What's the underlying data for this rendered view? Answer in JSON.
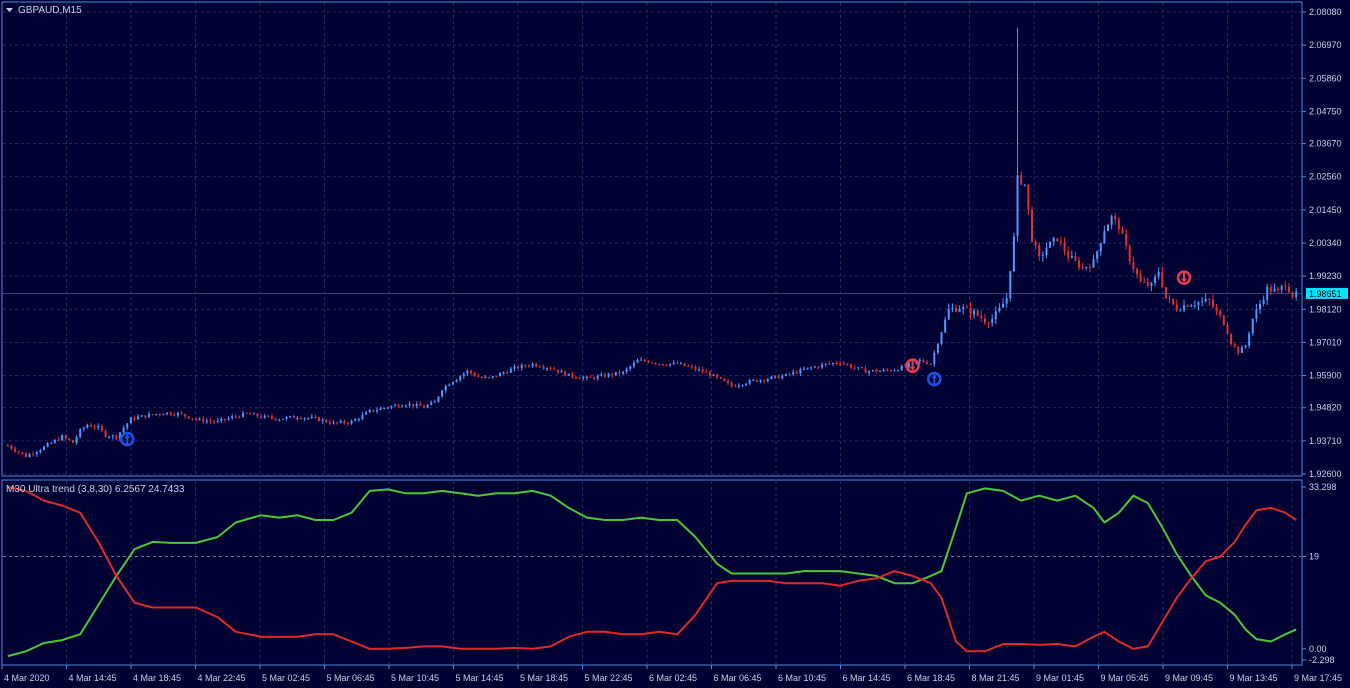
{
  "window": {
    "symbol_label": "GBPAUD,M15"
  },
  "colors": {
    "background": "#000032",
    "frame": "#4A8CE0",
    "grid": "#1E3C7A",
    "text": "#C8D2E6",
    "bull": "#4D9BFF",
    "bear": "#E03030",
    "green_line": "#4CC832",
    "red_line": "#E02A2A",
    "price_tag_bg": "#00E5FF",
    "arrow_up": "#1E50E6",
    "arrow_down": "#E63C50"
  },
  "price_axis": {
    "ticks": [
      "2.08080",
      "2.06970",
      "2.05860",
      "2.04750",
      "2.03670",
      "2.02560",
      "2.01450",
      "2.00340",
      "1.99230",
      "1.98120",
      "1.97010",
      "1.95900",
      "1.94820",
      "1.93710",
      "1.92600"
    ],
    "current_price": "1.98651"
  },
  "indicator": {
    "title": "M30 Ultra trend (3,8,30) 6.2567 24.7433",
    "ticks": [
      "33.298",
      "19",
      "0.00",
      "-2.298"
    ],
    "level": "19"
  },
  "time_axis": {
    "labels": [
      "4 Mar 2020",
      "4 Mar 14:45",
      "4 Mar 18:45",
      "4 Mar 22:45",
      "5 Mar 02:45",
      "5 Mar 06:45",
      "5 Mar 10:45",
      "5 Mar 14:45",
      "5 Mar 18:45",
      "5 Mar 22:45",
      "6 Mar 02:45",
      "6 Mar 06:45",
      "6 Mar 10:45",
      "6 Mar 14:45",
      "6 Mar 18:45",
      "8 Mar 21:45",
      "9 Mar 01:45",
      "9 Mar 05:45",
      "9 Mar 09:45",
      "9 Mar 13:45",
      "9 Mar 17:45"
    ]
  },
  "chart_data": [
    {
      "type": "candlestick",
      "title": "GBPAUD,M15",
      "ylim": [
        1.926,
        2.0808
      ],
      "y_ticks": [
        2.0808,
        2.0697,
        2.0586,
        2.0475,
        2.0367,
        2.0256,
        2.0145,
        2.0034,
        1.9923,
        1.9812,
        1.9701,
        1.959,
        1.9482,
        1.9371,
        1.926
      ],
      "close_path": [
        [
          0,
          1.9355
        ],
        [
          5,
          1.932
        ],
        [
          10,
          1.935
        ],
        [
          15,
          1.9385
        ],
        [
          18,
          1.9365
        ],
        [
          20,
          1.9405
        ],
        [
          22,
          1.9425
        ],
        [
          25,
          1.9415
        ],
        [
          27,
          1.939
        ],
        [
          30,
          1.9385
        ],
        [
          34,
          1.9445
        ],
        [
          38,
          1.9455
        ],
        [
          43,
          1.9465
        ],
        [
          47,
          1.9462
        ],
        [
          53,
          1.944
        ],
        [
          58,
          1.9435
        ],
        [
          62,
          1.945
        ],
        [
          66,
          1.9462
        ],
        [
          70,
          1.9452
        ],
        [
          75,
          1.9445
        ],
        [
          80,
          1.9452
        ],
        [
          85,
          1.9445
        ],
        [
          90,
          1.943
        ],
        [
          95,
          1.9435
        ],
        [
          100,
          1.947
        ],
        [
          105,
          1.9485
        ],
        [
          110,
          1.9495
        ],
        [
          115,
          1.9485
        ],
        [
          118,
          1.95
        ],
        [
          120,
          1.9545
        ],
        [
          122,
          1.9565
        ],
        [
          124,
          1.958
        ],
        [
          127,
          1.9605
        ],
        [
          130,
          1.9585
        ],
        [
          133,
          1.958
        ],
        [
          137,
          1.96
        ],
        [
          140,
          1.9615
        ],
        [
          145,
          1.9628
        ],
        [
          150,
          1.9615
        ],
        [
          155,
          1.959
        ],
        [
          160,
          1.958
        ],
        [
          165,
          1.959
        ],
        [
          170,
          1.96
        ],
        [
          174,
          1.964
        ],
        [
          177,
          1.9638
        ],
        [
          181,
          1.9628
        ],
        [
          185,
          1.963
        ],
        [
          189,
          1.9615
        ],
        [
          193,
          1.96
        ],
        [
          197,
          1.9575
        ],
        [
          200,
          1.9555
        ],
        [
          205,
          1.957
        ],
        [
          210,
          1.958
        ],
        [
          215,
          1.959
        ],
        [
          220,
          1.961
        ],
        [
          225,
          1.9625
        ],
        [
          230,
          1.9635
        ],
        [
          233,
          1.962
        ],
        [
          237,
          1.9605
        ],
        [
          241,
          1.9605
        ],
        [
          245,
          1.961
        ],
        [
          248,
          1.962
        ],
        [
          252,
          1.964
        ],
        [
          255,
          1.963
        ],
        [
          260,
          1.981
        ],
        [
          263,
          1.9818
        ],
        [
          267,
          1.98
        ],
        [
          270,
          1.9775
        ],
        [
          272,
          1.978
        ],
        [
          274,
          1.981
        ],
        [
          276,
          1.985
        ],
        [
          278,
          2.005
        ],
        [
          279,
          2.025
        ],
        [
          281,
          2.023
        ],
        [
          283,
          2.005
        ],
        [
          285,
          1.998
        ],
        [
          287,
          2.002
        ],
        [
          290,
          2.005
        ],
        [
          293,
          1.999
        ],
        [
          297,
          1.995
        ],
        [
          300,
          1.997
        ],
        [
          303,
          2.008
        ],
        [
          305,
          2.012
        ],
        [
          307,
          2.009
        ],
        [
          310,
          1.998
        ],
        [
          313,
          1.99
        ],
        [
          316,
          1.989
        ],
        [
          318,
          1.994
        ],
        [
          320,
          1.985
        ],
        [
          323,
          1.9815
        ],
        [
          326,
          1.983
        ],
        [
          329,
          1.9835
        ],
        [
          332,
          1.984
        ],
        [
          334,
          1.98
        ],
        [
          336,
          1.977
        ],
        [
          338,
          1.97
        ],
        [
          340,
          1.967
        ],
        [
          342,
          1.969
        ],
        [
          344,
          1.978
        ],
        [
          346,
          1.983
        ],
        [
          348,
          1.988
        ],
        [
          351,
          1.987
        ],
        [
          353,
          1.99
        ],
        [
          355,
          1.986
        ]
      ],
      "current_price": 1.98651,
      "signals": [
        {
          "index": 33,
          "direction": "up",
          "price": 1.9377
        },
        {
          "index": 250,
          "direction": "down",
          "price": 1.9623
        },
        {
          "index": 256,
          "direction": "up",
          "price": 1.9578
        },
        {
          "index": 325,
          "direction": "down",
          "price": 1.9918
        }
      ]
    },
    {
      "type": "line",
      "title": "M30 Ultra trend (3,8,30) 6.2567 24.7433",
      "ylim": [
        -2.298,
        33.298
      ],
      "y_ticks": [
        33.298,
        19,
        0.0,
        -2.298
      ],
      "levels": [
        19
      ],
      "series": [
        {
          "color": "#4CC832",
          "points": [
            [
              0,
              -1.5
            ],
            [
              5,
              -0.5
            ],
            [
              10,
              1.2
            ],
            [
              15,
              1.8
            ],
            [
              20,
              3.0
            ],
            [
              25,
              9.0
            ],
            [
              30,
              15.0
            ],
            [
              35,
              20.5
            ],
            [
              40,
              22.0
            ],
            [
              45,
              21.8
            ],
            [
              52,
              21.8
            ],
            [
              58,
              23.0
            ],
            [
              63,
              26.0
            ],
            [
              70,
              27.5
            ],
            [
              75,
              27.0
            ],
            [
              80,
              27.5
            ],
            [
              85,
              26.5
            ],
            [
              90,
              26.5
            ],
            [
              95,
              28.0
            ],
            [
              100,
              32.5
            ],
            [
              105,
              32.8
            ],
            [
              110,
              32.0
            ],
            [
              115,
              32.0
            ],
            [
              120,
              32.5
            ],
            [
              125,
              32.0
            ],
            [
              130,
              31.5
            ],
            [
              135,
              32.0
            ],
            [
              140,
              32.0
            ],
            [
              145,
              32.5
            ],
            [
              150,
              31.5
            ],
            [
              155,
              29.0
            ],
            [
              160,
              27.0
            ],
            [
              165,
              26.5
            ],
            [
              170,
              26.5
            ],
            [
              175,
              27.0
            ],
            [
              180,
              26.5
            ],
            [
              185,
              26.5
            ],
            [
              190,
              23.0
            ],
            [
              196,
              17.5
            ],
            [
              200,
              15.5
            ],
            [
              205,
              15.5
            ],
            [
              210,
              15.5
            ],
            [
              215,
              15.5
            ],
            [
              220,
              16.0
            ],
            [
              225,
              16.0
            ],
            [
              230,
              16.0
            ],
            [
              235,
              15.5
            ],
            [
              240,
              15.0
            ],
            [
              245,
              13.5
            ],
            [
              250,
              13.5
            ],
            [
              255,
              15.0
            ],
            [
              258,
              16.0
            ],
            [
              262,
              25.0
            ],
            [
              265,
              32.0
            ],
            [
              270,
              33.0
            ],
            [
              275,
              32.5
            ],
            [
              280,
              30.5
            ],
            [
              285,
              31.5
            ],
            [
              290,
              30.5
            ],
            [
              295,
              31.5
            ],
            [
              300,
              29.0
            ],
            [
              303,
              26.0
            ],
            [
              307,
              28.0
            ],
            [
              311,
              31.5
            ],
            [
              315,
              30.0
            ],
            [
              319,
              25.0
            ],
            [
              323,
              19.5
            ],
            [
              327,
              15.0
            ],
            [
              331,
              11.0
            ],
            [
              335,
              9.5
            ],
            [
              339,
              7.0
            ],
            [
              342,
              4.0
            ],
            [
              345,
              2.0
            ],
            [
              349,
              1.5
            ],
            [
              353,
              3.0
            ],
            [
              356,
              4.0
            ]
          ]
        },
        {
          "color": "#E02A2A",
          "points": [
            [
              0,
              33.3
            ],
            [
              5,
              32.5
            ],
            [
              10,
              30.5
            ],
            [
              15,
              29.5
            ],
            [
              20,
              28.0
            ],
            [
              25,
              22.0
            ],
            [
              30,
              15.0
            ],
            [
              35,
              9.5
            ],
            [
              40,
              8.5
            ],
            [
              45,
              8.5
            ],
            [
              52,
              8.5
            ],
            [
              58,
              6.5
            ],
            [
              63,
              3.5
            ],
            [
              70,
              2.5
            ],
            [
              75,
              2.5
            ],
            [
              80,
              2.5
            ],
            [
              85,
              3.0
            ],
            [
              90,
              3.0
            ],
            [
              95,
              1.5
            ],
            [
              100,
              0.0
            ],
            [
              105,
              0.0
            ],
            [
              110,
              0.2
            ],
            [
              115,
              0.5
            ],
            [
              120,
              0.5
            ],
            [
              125,
              0.0
            ],
            [
              130,
              0.0
            ],
            [
              135,
              0.0
            ],
            [
              140,
              0.2
            ],
            [
              145,
              0.0
            ],
            [
              150,
              0.5
            ],
            [
              155,
              2.5
            ],
            [
              160,
              3.5
            ],
            [
              165,
              3.5
            ],
            [
              170,
              3.0
            ],
            [
              175,
              3.0
            ],
            [
              180,
              3.5
            ],
            [
              185,
              3.0
            ],
            [
              190,
              7.0
            ],
            [
              196,
              13.5
            ],
            [
              200,
              14.0
            ],
            [
              205,
              14.0
            ],
            [
              210,
              14.0
            ],
            [
              215,
              13.5
            ],
            [
              220,
              13.5
            ],
            [
              225,
              13.5
            ],
            [
              230,
              13.0
            ],
            [
              235,
              14.0
            ],
            [
              240,
              14.5
            ],
            [
              245,
              16.0
            ],
            [
              250,
              15.0
            ],
            [
              255,
              13.5
            ],
            [
              258,
              10.5
            ],
            [
              262,
              1.5
            ],
            [
              265,
              -0.5
            ],
            [
              270,
              -0.5
            ],
            [
              275,
              1.0
            ],
            [
              280,
              1.0
            ],
            [
              285,
              0.8
            ],
            [
              290,
              1.0
            ],
            [
              295,
              0.5
            ],
            [
              300,
              2.5
            ],
            [
              303,
              3.5
            ],
            [
              307,
              1.5
            ],
            [
              311,
              0.0
            ],
            [
              315,
              0.5
            ],
            [
              319,
              5.5
            ],
            [
              323,
              10.5
            ],
            [
              327,
              14.5
            ],
            [
              331,
              18.0
            ],
            [
              335,
              19.0
            ],
            [
              339,
              22.0
            ],
            [
              342,
              25.5
            ],
            [
              345,
              28.5
            ],
            [
              349,
              29.0
            ],
            [
              353,
              28.0
            ],
            [
              356,
              26.5
            ]
          ]
        }
      ]
    }
  ]
}
